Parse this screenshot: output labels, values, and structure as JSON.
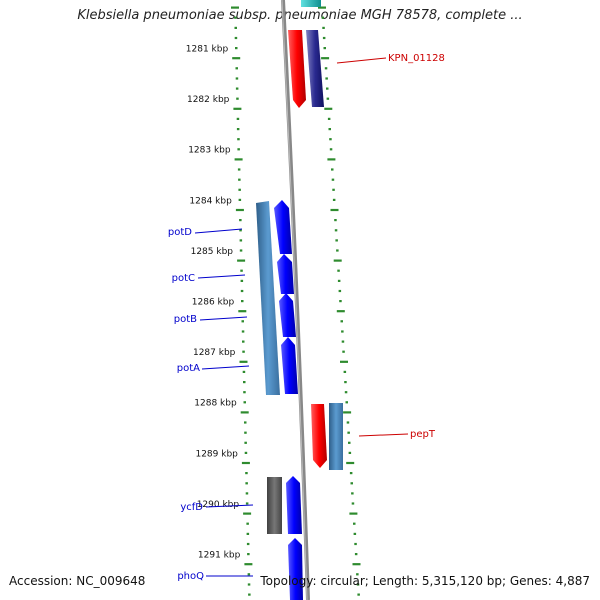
{
  "title": "Klebsiella pneumoniae subsp. pneumoniae MGH 78578, complete ...",
  "footer": {
    "accession": "Accession: NC_009648",
    "summary": "Topology: circular; Length: 5,315,120 bp; Genes: 4,887"
  },
  "ticks": [
    "1281 kbp",
    "1282 kbp",
    "1283 kbp",
    "1284 kbp",
    "1285 kbp",
    "1286 kbp",
    "1287 kbp",
    "1288 kbp",
    "1289 kbp",
    "1290 kbp",
    "1291 kbp"
  ],
  "genes_left": [
    {
      "label": "potD",
      "color": "#0000cc"
    },
    {
      "label": "potC",
      "color": "#0000cc"
    },
    {
      "label": "potB",
      "color": "#0000cc"
    },
    {
      "label": "potA",
      "color": "#0000cc"
    },
    {
      "label": "ycfD",
      "color": "#0000cc"
    },
    {
      "label": "phoQ",
      "color": "#0000cc"
    }
  ],
  "genes_right": [
    {
      "label": "KPN_01128",
      "color": "#cc0000"
    },
    {
      "label": "pepT",
      "color": "#cc0000"
    }
  ],
  "colors": {
    "axis": "#808080",
    "tick": "#2e8b2e",
    "forward_gene": "#0a0aff",
    "reverse_gene": "#ff0000",
    "steel_blue": "#4682b4",
    "navy": "#1a1a8c",
    "dark_gray": "#555555",
    "cyan": "#20c0c0"
  }
}
